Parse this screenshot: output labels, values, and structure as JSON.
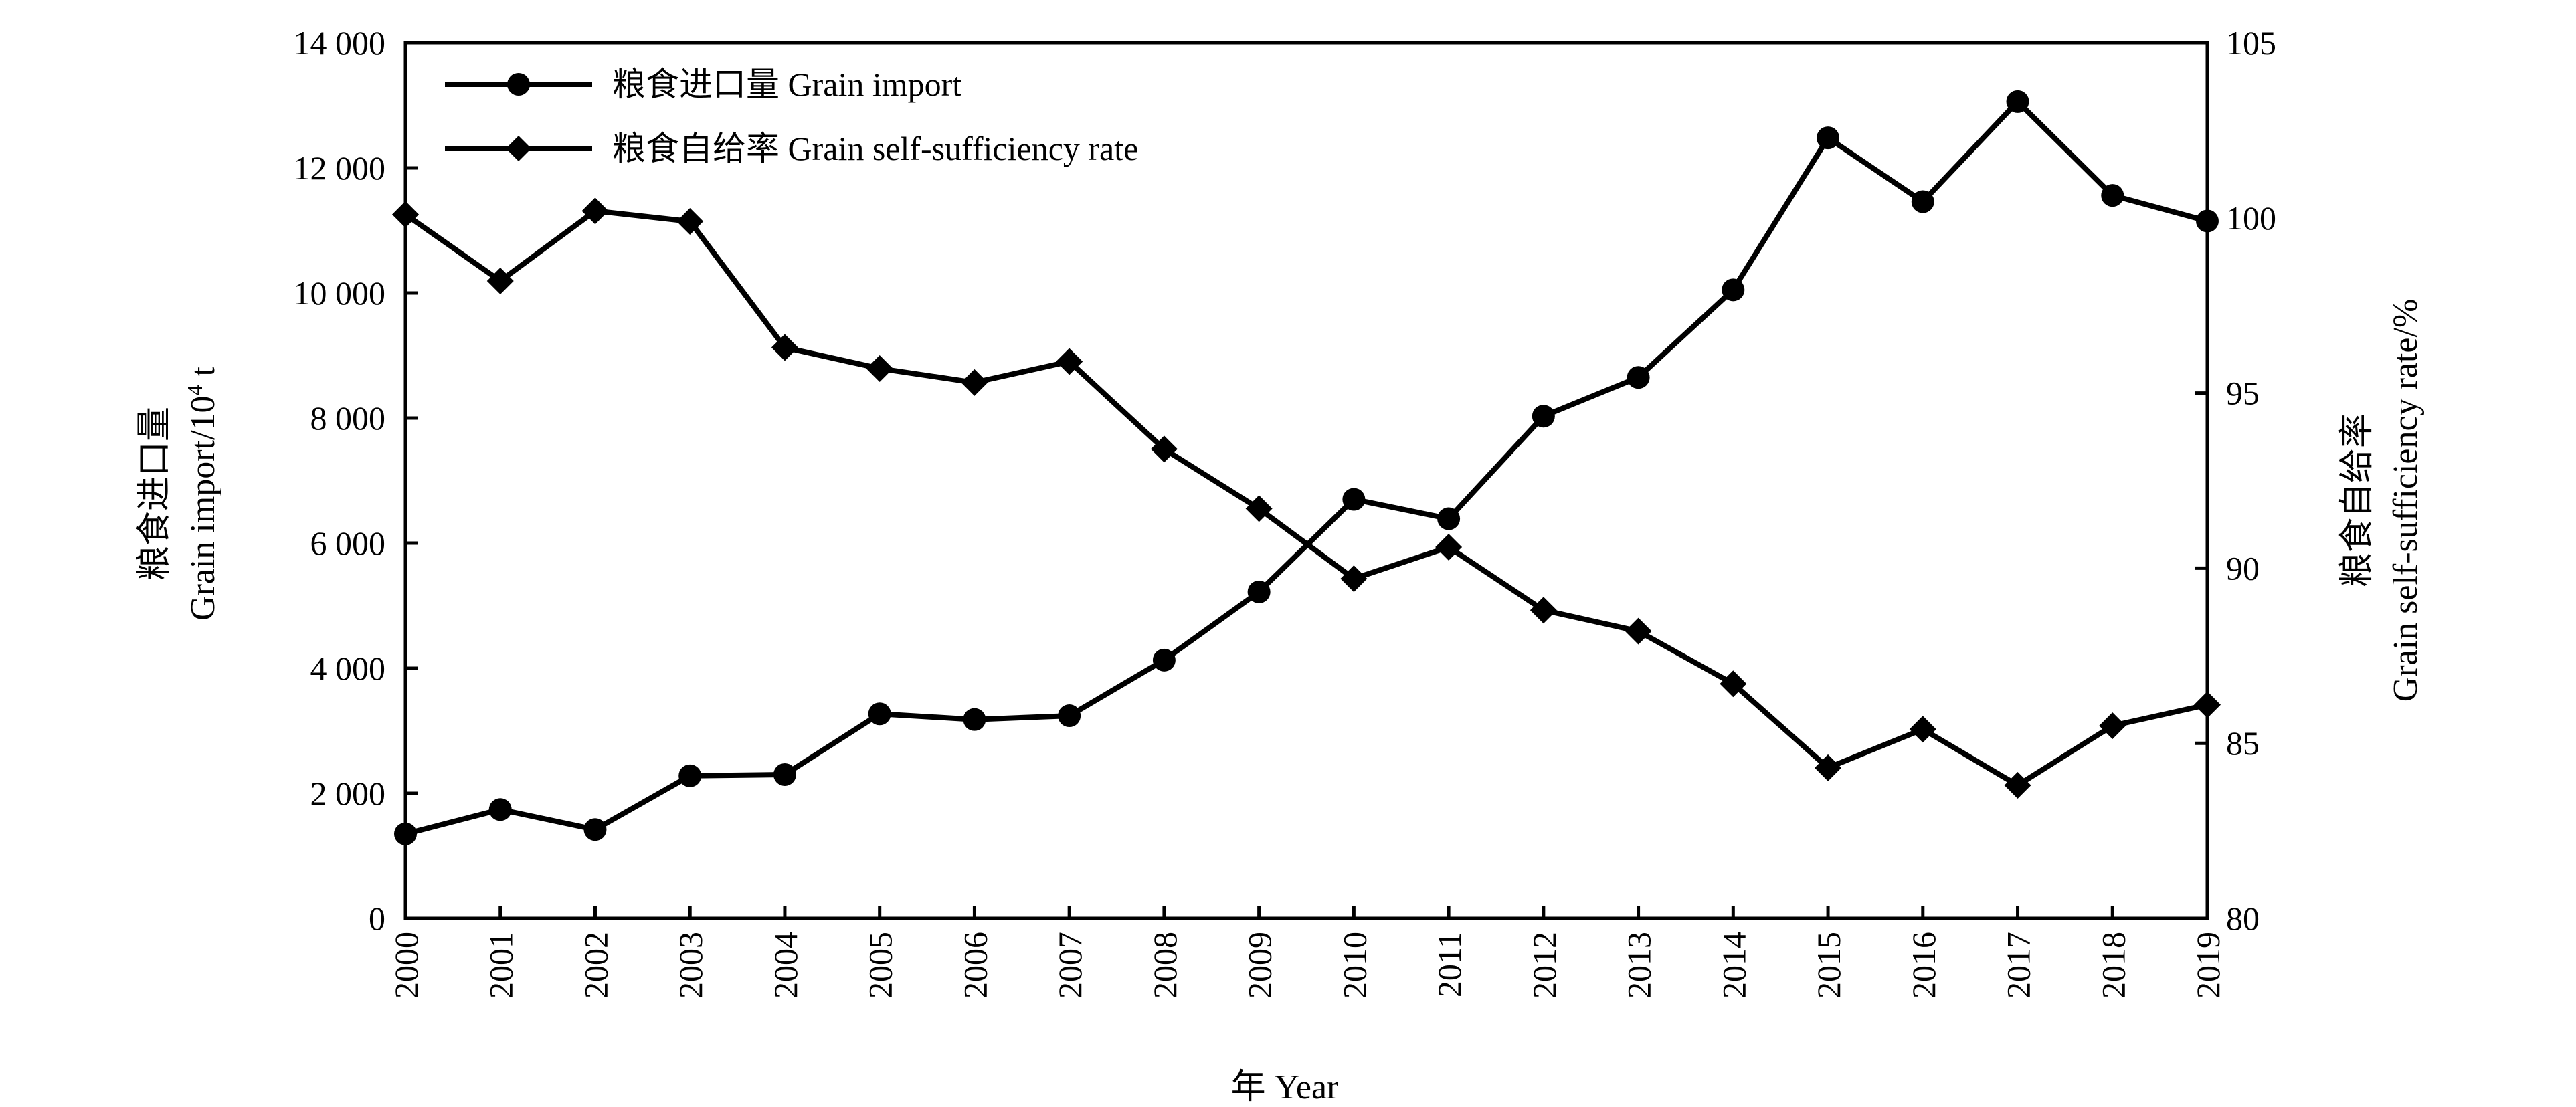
{
  "chart_data": {
    "type": "line",
    "title": "",
    "x": [
      2000,
      2001,
      2002,
      2003,
      2004,
      2005,
      2006,
      2007,
      2008,
      2009,
      2010,
      2011,
      2012,
      2013,
      2014,
      2015,
      2016,
      2017,
      2018,
      2019
    ],
    "x_tick_labels": [
      "2000",
      "2001",
      "2002",
      "2003",
      "2004",
      "2005",
      "2006",
      "2007",
      "2008",
      "2009",
      "2010",
      "2011",
      "2012",
      "2013",
      "2014",
      "2015",
      "2016",
      "2017",
      "2018",
      "2019"
    ],
    "xlabel": "年 Year",
    "ylabel_left_cn": "粮食进口量",
    "ylabel_left_en": "Grain import/10",
    "ylabel_left_sup": "4",
    "ylabel_left_unit": " t",
    "ylabel_right_cn": "粮食自给率",
    "ylabel_right_en": "Grain self-sufficiency rate/%",
    "ylim_left": [
      0,
      14000
    ],
    "yticks_left": [
      0,
      2000,
      4000,
      6000,
      8000,
      10000,
      12000,
      14000
    ],
    "ytick_labels_left": [
      "0",
      "2 000",
      "4 000",
      "6 000",
      "8 000",
      "10 000",
      "12 000",
      "14 000"
    ],
    "ylim_right": [
      80,
      105
    ],
    "yticks_right": [
      80,
      85,
      90,
      95,
      100,
      105
    ],
    "ytick_labels_right": [
      "80",
      "85",
      "90",
      "95",
      "100",
      "105"
    ],
    "legend_position": "top-left",
    "series": [
      {
        "name": "粮食进口量 Grain import",
        "axis": "left",
        "marker": "circle",
        "values": [
          1350,
          1740,
          1420,
          2280,
          2300,
          3270,
          3180,
          3240,
          4130,
          5220,
          6700,
          6390,
          8030,
          8650,
          10050,
          12480,
          11460,
          13060,
          11560,
          11150
        ]
      },
      {
        "name": "粮食自给率 Grain self-sufficiency rate",
        "axis": "right",
        "marker": "diamond",
        "values": [
          100.1,
          98.2,
          100.2,
          99.9,
          96.3,
          95.7,
          95.3,
          95.9,
          93.4,
          91.7,
          89.7,
          90.6,
          88.8,
          88.2,
          86.7,
          84.3,
          85.4,
          83.8,
          85.5,
          86.1
        ]
      }
    ]
  },
  "colors": {
    "line": "#000000",
    "background": "#ffffff"
  }
}
